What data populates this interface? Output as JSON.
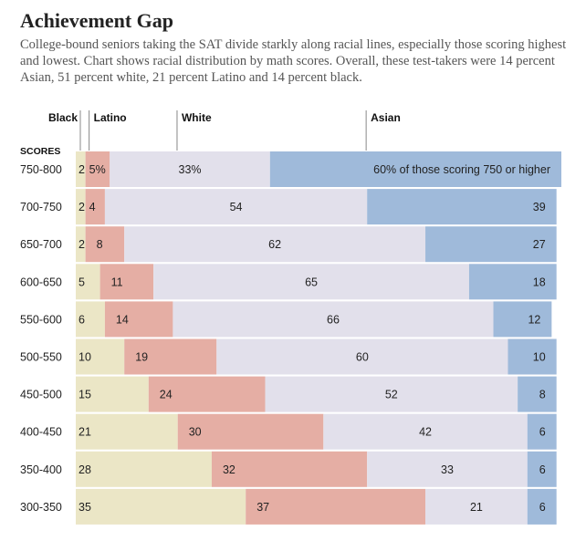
{
  "title": "Achievement Gap",
  "subtitle": "College-bound seniors taking the SAT divide starkly along racial lines, especially those scoring highest and lowest. Chart shows racial distribution by math scores. Overall, these test-takers were 14 percent Asian, 51 percent white, 21 percent Latino and 14 percent black.",
  "chart_data": {
    "type": "bar",
    "orientation": "horizontal",
    "stacked": "100%",
    "category_axis_label": "SCORES",
    "categories": [
      "750-800",
      "700-750",
      "650-700",
      "600-650",
      "550-600",
      "500-550",
      "450-500",
      "400-450",
      "350-400",
      "300-350"
    ],
    "series": [
      {
        "name": "Black",
        "color": "#ebe6c6",
        "values": [
          2,
          2,
          2,
          5,
          6,
          10,
          15,
          21,
          28,
          35
        ],
        "labels": [
          "2",
          "2",
          "2",
          "5",
          "6",
          "10",
          "15",
          "21",
          "28",
          "35"
        ]
      },
      {
        "name": "Latino",
        "color": "#e5aea4",
        "values": [
          5,
          4,
          8,
          11,
          14,
          19,
          24,
          30,
          32,
          37
        ],
        "labels": [
          "5%",
          "4",
          "8",
          "11",
          "14",
          "19",
          "24",
          "30",
          "32",
          "37"
        ]
      },
      {
        "name": "White",
        "color": "#e2e0eb",
        "values": [
          33,
          54,
          62,
          65,
          66,
          60,
          52,
          42,
          33,
          21
        ],
        "labels": [
          "33%",
          "54",
          "62",
          "65",
          "66",
          "60",
          "52",
          "42",
          "33",
          "21"
        ]
      },
      {
        "name": "Asian",
        "color": "#9fbada",
        "values": [
          60,
          39,
          27,
          18,
          12,
          10,
          8,
          6,
          6,
          6
        ],
        "labels": [
          "60% of those scoring 750 or higher",
          "39",
          "27",
          "18",
          "12",
          "10",
          "8",
          "6",
          "6",
          "6"
        ]
      }
    ],
    "xlim": [
      0,
      100
    ],
    "grid": false,
    "legend": "top"
  }
}
